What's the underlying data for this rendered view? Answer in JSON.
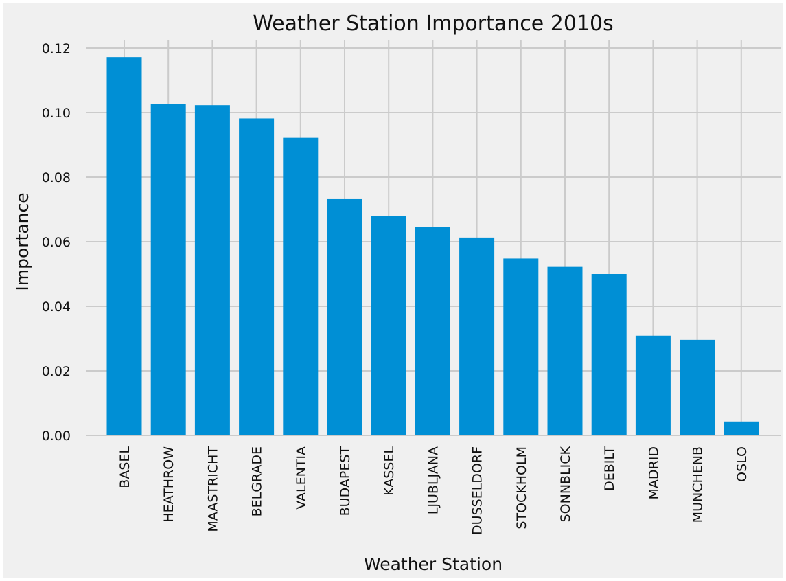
{
  "chart_data": {
    "type": "bar",
    "title": "Weather Station Importance 2010s",
    "xlabel": "Weather Station",
    "ylabel": "Importance",
    "categories": [
      "BASEL",
      "HEATHROW",
      "MAASTRICHT",
      "BELGRADE",
      "VALENTIA",
      "BUDAPEST",
      "KASSEL",
      "LJUBLJANA",
      "DUSSELDORF",
      "STOCKHOLM",
      "SONNBLICK",
      "DEBILT",
      "MADRID",
      "MUNCHENB",
      "OSLO"
    ],
    "values": [
      0.1172,
      0.1026,
      0.1023,
      0.0982,
      0.0922,
      0.0732,
      0.0679,
      0.0646,
      0.0613,
      0.0548,
      0.0522,
      0.05,
      0.0309,
      0.0296,
      0.0043
    ],
    "yticks": [
      "0.00",
      "0.02",
      "0.04",
      "0.06",
      "0.08",
      "0.10",
      "0.12"
    ],
    "ylim": [
      0,
      0.1225
    ],
    "grid": true,
    "colors": {
      "bar": "#008fd5",
      "grid": "#cbcbcb",
      "background": "#f0f0f0"
    }
  }
}
